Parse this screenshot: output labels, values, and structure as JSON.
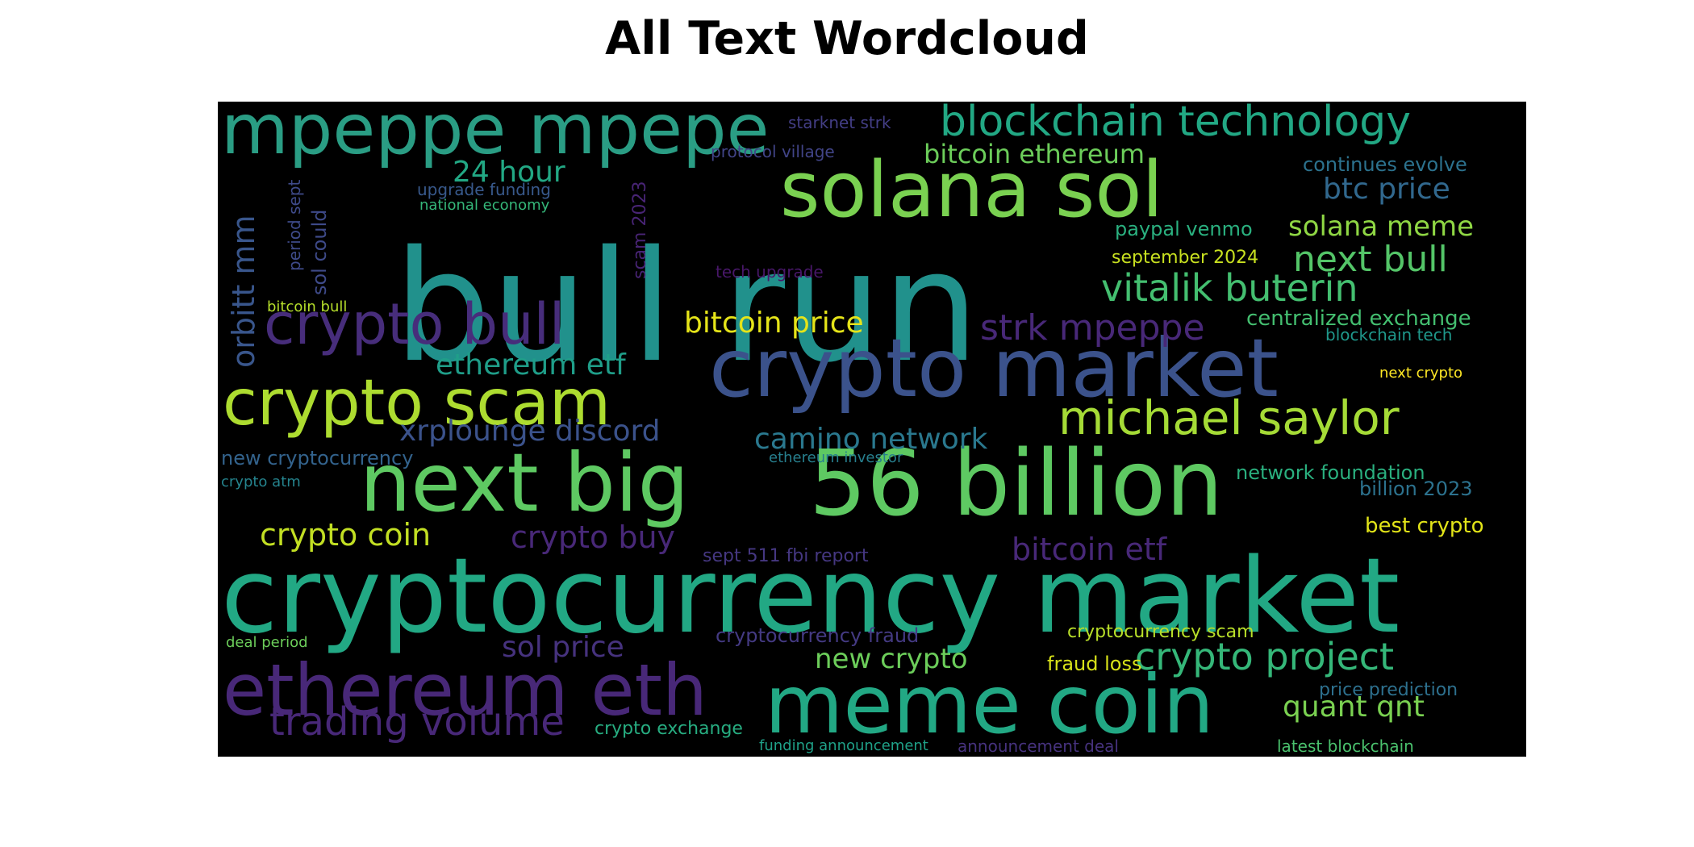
{
  "figure": {
    "title": "All Text Wordcloud",
    "background": "#000000",
    "colormap": "viridis"
  },
  "words": [
    {
      "text": "bull run",
      "color": "#21918c"
    },
    {
      "text": "cryptocurrency market",
      "color": "#22a884"
    },
    {
      "text": "56 billion",
      "color": "#5ec962"
    },
    {
      "text": "crypto market",
      "color": "#3b528b"
    },
    {
      "text": "meme coin",
      "color": "#22a884"
    },
    {
      "text": "next big",
      "color": "#5ec962"
    },
    {
      "text": "mpeppe mpepe",
      "color": "#2a9d84"
    },
    {
      "text": "solana sol",
      "color": "#7ad151"
    },
    {
      "text": "ethereum eth",
      "color": "#482878"
    },
    {
      "text": "crypto scam",
      "color": "#addc30"
    },
    {
      "text": "crypto bull",
      "color": "#472d7b"
    },
    {
      "text": "blockchain technology",
      "color": "#22a884"
    },
    {
      "text": "michael saylor",
      "color": "#a5db36"
    },
    {
      "text": "crypto project",
      "color": "#35b779"
    },
    {
      "text": "vitalik buterin",
      "color": "#44bf70"
    },
    {
      "text": "trading volume",
      "color": "#482878"
    },
    {
      "text": "next bull",
      "color": "#54c568"
    },
    {
      "text": "strk mpeppe",
      "color": "#482878"
    },
    {
      "text": "camino network",
      "color": "#2a788e"
    },
    {
      "text": "xrplounge discord",
      "color": "#3b528b"
    },
    {
      "text": "crypto coin",
      "color": "#c2df23"
    },
    {
      "text": "crypto buy",
      "color": "#482878"
    },
    {
      "text": "bitcoin etf",
      "color": "#482878"
    },
    {
      "text": "bitcoin price",
      "color": "#e5e419"
    },
    {
      "text": "ethereum etf",
      "color": "#1f9e89"
    },
    {
      "text": "bitcoin ethereum",
      "color": "#6ccd5a"
    },
    {
      "text": "solana meme",
      "color": "#8fd744"
    },
    {
      "text": "btc price",
      "color": "#31688e"
    },
    {
      "text": "24 hour",
      "color": "#22a884"
    },
    {
      "text": "orbitt mm",
      "color": "#39568c"
    },
    {
      "text": "quant qnt",
      "color": "#7ad151"
    },
    {
      "text": "new crypto",
      "color": "#6ccd5a"
    },
    {
      "text": "sol price",
      "color": "#46327e"
    },
    {
      "text": "centralized exchange",
      "color": "#44bf70"
    },
    {
      "text": "paypal venmo",
      "color": "#2ab07f"
    },
    {
      "text": "september 2024",
      "color": "#c8e020"
    },
    {
      "text": "continues evolve",
      "color": "#2c728e"
    },
    {
      "text": "network foundation",
      "color": "#2ab07f"
    },
    {
      "text": "billion 2023",
      "color": "#2c728e"
    },
    {
      "text": "best crypto",
      "color": "#e2e418"
    },
    {
      "text": "fraud loss",
      "color": "#d8e219"
    },
    {
      "text": "cryptocurrency fraud",
      "color": "#443a83"
    },
    {
      "text": "cryptocurrency scam",
      "color": "#b8de29"
    },
    {
      "text": "price prediction",
      "color": "#2d708e"
    },
    {
      "text": "sept 511 fbi report",
      "color": "#453781"
    },
    {
      "text": "new cryptocurrency",
      "color": "#33638d"
    },
    {
      "text": "crypto exchange",
      "color": "#27ad81"
    },
    {
      "text": "funding announcement",
      "color": "#1fa188"
    },
    {
      "text": "announcement deal",
      "color": "#46327e"
    },
    {
      "text": "latest blockchain",
      "color": "#4ac16d"
    },
    {
      "text": "starknet strk",
      "color": "#433e85"
    },
    {
      "text": "protocol village",
      "color": "#414487"
    },
    {
      "text": "upgrade funding",
      "color": "#38598c"
    },
    {
      "text": "national economy",
      "color": "#35b779"
    },
    {
      "text": "tech upgrade",
      "color": "#481769"
    },
    {
      "text": "sol could",
      "color": "#3e4a89"
    },
    {
      "text": "period sept",
      "color": "#3e4a89"
    },
    {
      "text": "scam 2023",
      "color": "#482475"
    },
    {
      "text": "bitcoin bull",
      "color": "#b5de2b"
    },
    {
      "text": "blockchain tech",
      "color": "#1f988b"
    },
    {
      "text": "next crypto",
      "color": "#fde725"
    },
    {
      "text": "ethereum investor",
      "color": "#277f8e"
    },
    {
      "text": "crypto atm",
      "color": "#25848e"
    },
    {
      "text": "deal period",
      "color": "#6ccd5a"
    }
  ]
}
